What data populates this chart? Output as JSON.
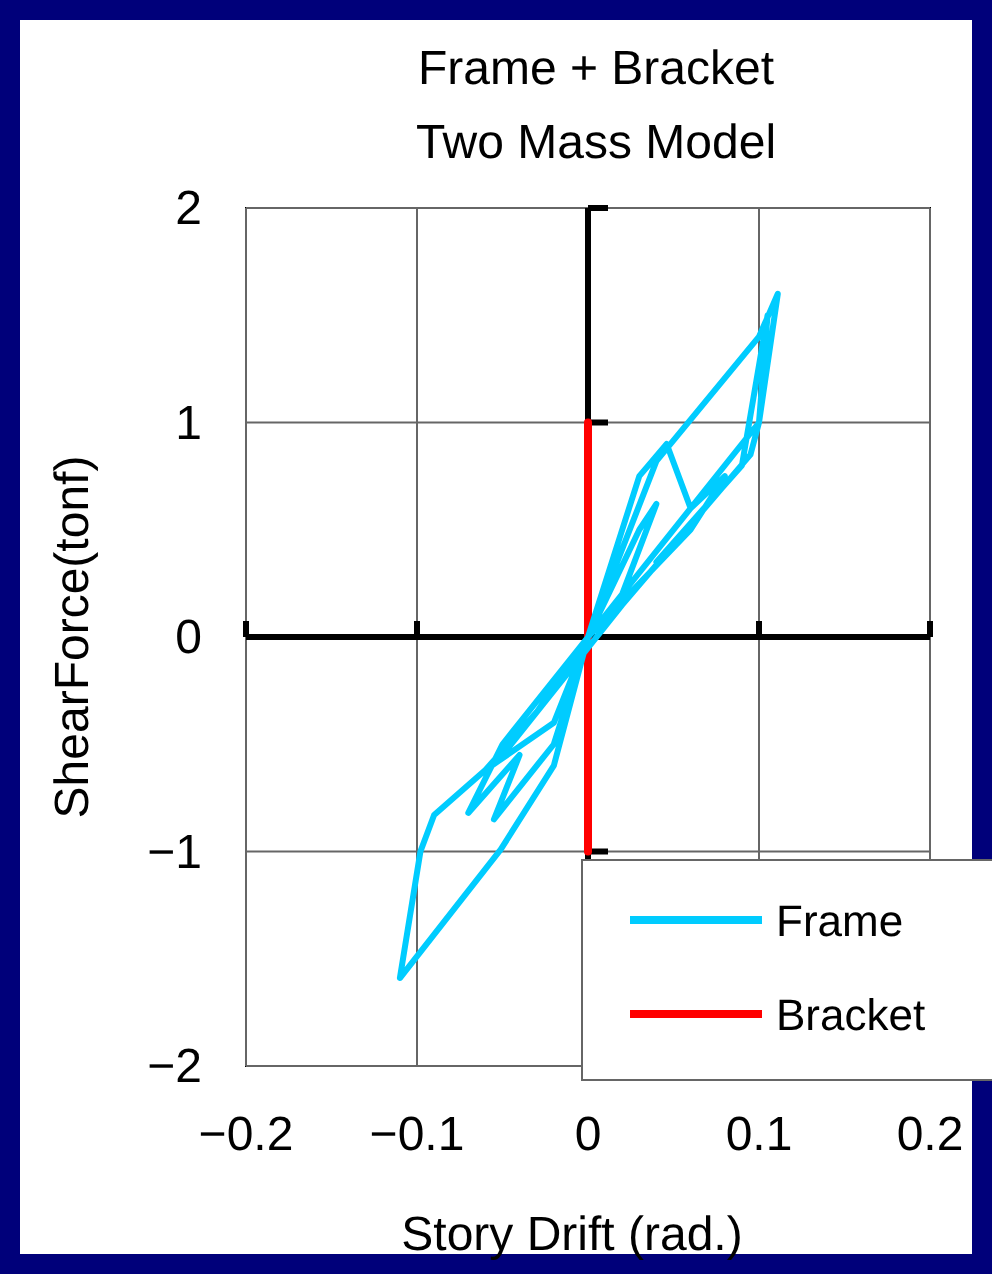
{
  "chart_data": {
    "type": "line",
    "title": "Frame + Bracket\nTwo Mass Model",
    "xlabel": "Story Drift (rad.)",
    "ylabel": "ShearForce(tonf)",
    "xlim": [
      -0.2,
      0.2
    ],
    "ylim": [
      -2,
      2
    ],
    "xticks": [
      {
        "value": -0.2,
        "label": "−0.2"
      },
      {
        "value": -0.1,
        "label": "−0.1"
      },
      0,
      0.1,
      0.2
    ],
    "yticks": [
      {
        "value": -2,
        "label": "−2"
      },
      {
        "value": -1,
        "label": "−1"
      },
      0,
      1,
      2
    ],
    "grid": true,
    "legend": "bottom right",
    "marker": "none",
    "line_style": "solid",
    "series": [
      {
        "name": "Frame",
        "color": "#00ccff",
        "x": [
          0,
          0.03,
          0.04,
          0.02,
          0,
          -0.03,
          -0.06,
          -0.02,
          0,
          0.03,
          0.046,
          0.06,
          0.08,
          0.06,
          0,
          -0.05,
          -0.07,
          -0.04,
          -0.055,
          -0.02,
          0,
          0.04,
          0.1,
          0.111,
          0.1,
          0.095,
          0.02,
          -0.05,
          -0.09,
          -0.098,
          -0.11,
          -0.051,
          -0.02,
          0,
          0.1,
          0.105,
          0.09,
          0.04
        ],
        "values": [
          0,
          0.5,
          0.62,
          0.2,
          0,
          -0.35,
          -0.62,
          -0.4,
          0,
          0.75,
          0.9,
          0.6,
          0.75,
          0.5,
          0,
          -0.5,
          -0.82,
          -0.55,
          -0.85,
          -0.5,
          0,
          0.82,
          1.4,
          1.6,
          1.0,
          0.85,
          0.15,
          -0.55,
          -0.83,
          -1.0,
          -1.59,
          -0.99,
          -0.6,
          0,
          1.0,
          1.5,
          0.8,
          0.35
        ]
      },
      {
        "name": "Bracket",
        "color": "#ff0000",
        "x": [
          0,
          0
        ],
        "values": [
          -1,
          1
        ]
      }
    ]
  }
}
